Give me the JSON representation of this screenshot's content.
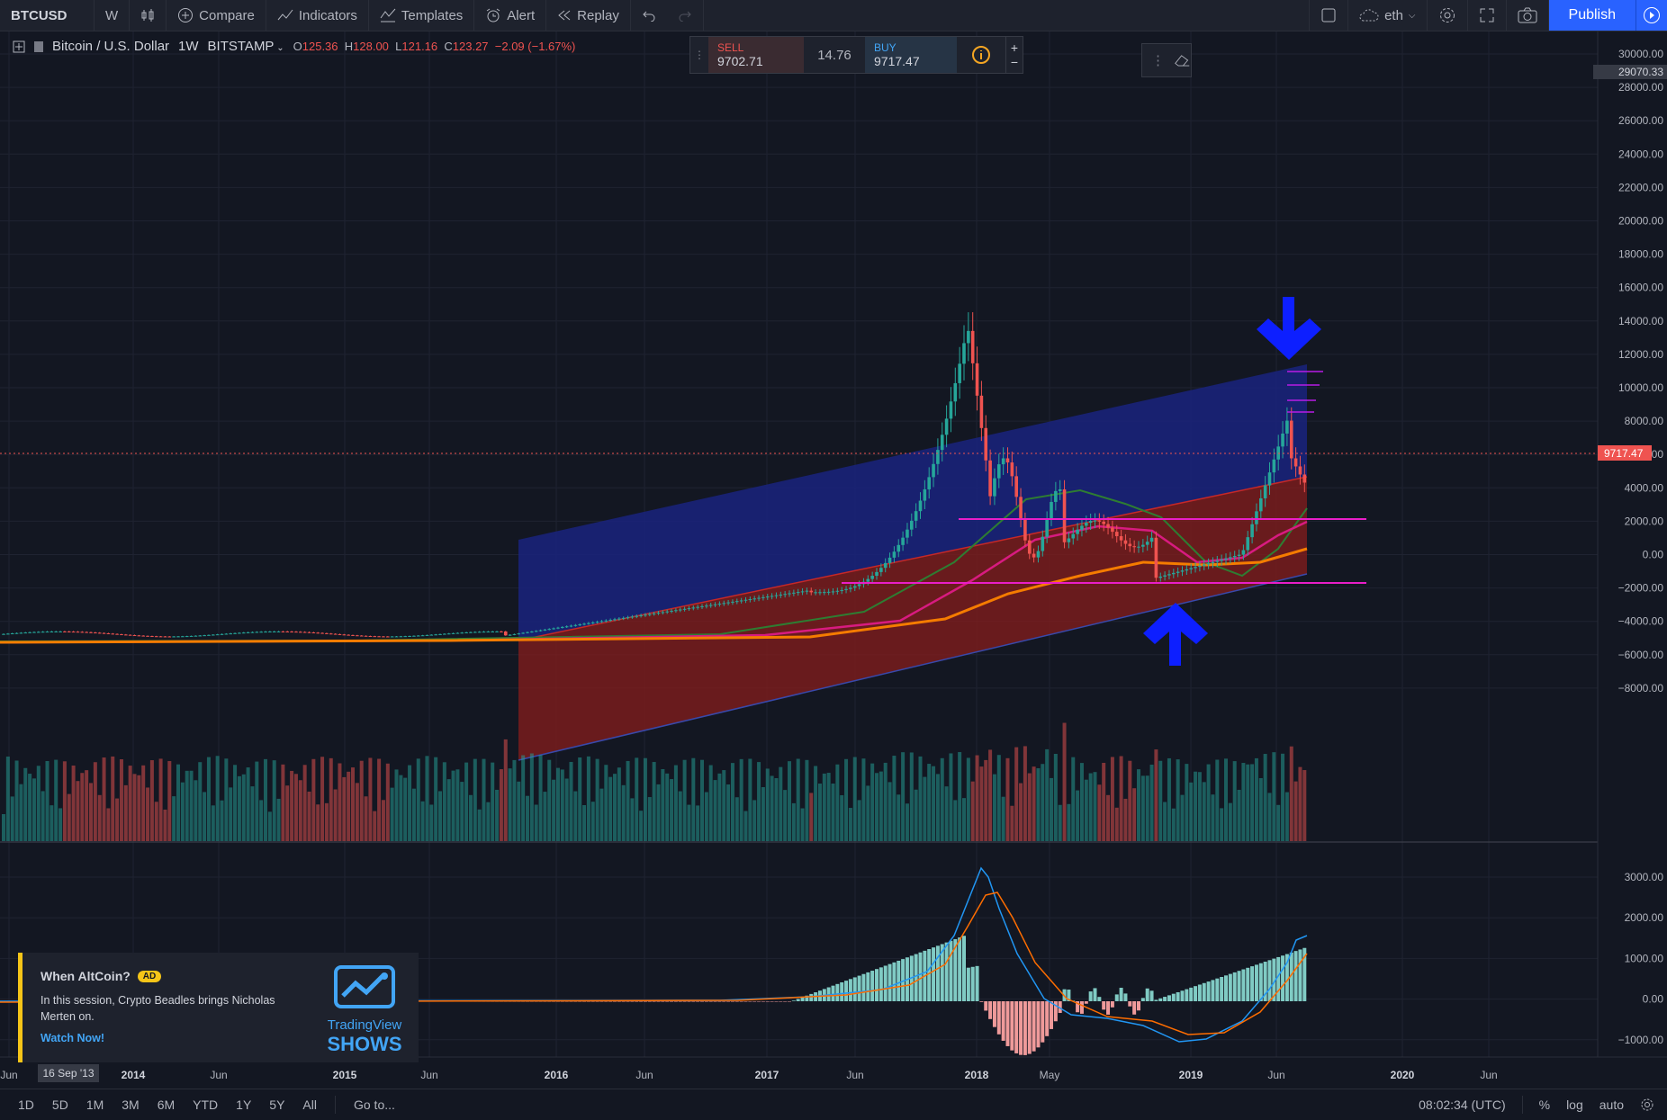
{
  "toolbar": {
    "symbol": "BTCUSD",
    "interval": "W",
    "compare": "Compare",
    "indicators": "Indicators",
    "templates": "Templates",
    "alert": "Alert",
    "replay": "Replay",
    "layout_name": "eth",
    "publish": "Publish"
  },
  "legend": {
    "title": "Bitcoin / U.S. Dollar",
    "resolution": "1W",
    "exchange": "BITSTAMP",
    "o_label": "O",
    "o_value": "125.36",
    "h_label": "H",
    "h_value": "128.00",
    "l_label": "L",
    "l_value": "121.16",
    "c_label": "C",
    "c_value": "123.27",
    "change": "−2.09 (−1.67%)"
  },
  "trade": {
    "sell_label": "SELL",
    "sell_price": "9702.71",
    "spread": "14.76",
    "buy_label": "BUY",
    "buy_price": "9717.47",
    "plus": "+",
    "minus": "−"
  },
  "price_axis": {
    "ticks": [
      "30000.00",
      "28000.00",
      "26000.00",
      "24000.00",
      "22000.00",
      "20000.00",
      "18000.00",
      "16000.00",
      "14000.00",
      "12000.00",
      "10000.00",
      "8000.00",
      "6000.00",
      "4000.00",
      "2000.00",
      "0.00",
      "−2000.00",
      "−4000.00",
      "−6000.00",
      "−8000.00"
    ],
    "crosshair_value": "29070.33",
    "last_price": "9717.47"
  },
  "macd_axis": {
    "ticks": [
      "3000.00",
      "2000.00",
      "1000.00",
      "0.00",
      "−1000.00"
    ]
  },
  "time_axis": {
    "labels": [
      "Jun",
      "2014",
      "Jun",
      "2015",
      "Jun",
      "2016",
      "Jun",
      "2017",
      "Jun",
      "2018",
      "May",
      "2019",
      "Jun",
      "2020",
      "Jun"
    ],
    "crosshair_date": "16 Sep '13"
  },
  "ad": {
    "title": "When AltCoin?",
    "tag": "AD",
    "description": "In this session, Crypto Beadles brings Nicholas Merten on.",
    "cta": "Watch Now!",
    "logo_line1": "TradingView",
    "logo_line2": "SHOWS"
  },
  "bottom": {
    "ranges": [
      "1D",
      "5D",
      "1M",
      "3M",
      "6M",
      "YTD",
      "1Y",
      "5Y",
      "All"
    ],
    "goto": "Go to...",
    "clock": "08:02:34 (UTC)",
    "percent": "%",
    "log": "log",
    "auto": "auto"
  },
  "colors": {
    "background": "#131722",
    "up": "#26a69a",
    "down": "#ef5350",
    "accent": "#2962ff",
    "channel_upper": "#1a237e",
    "channel_lower": "#7f1d1d",
    "support_line": "#e91ec8",
    "arrow": "#0d1fff"
  }
}
